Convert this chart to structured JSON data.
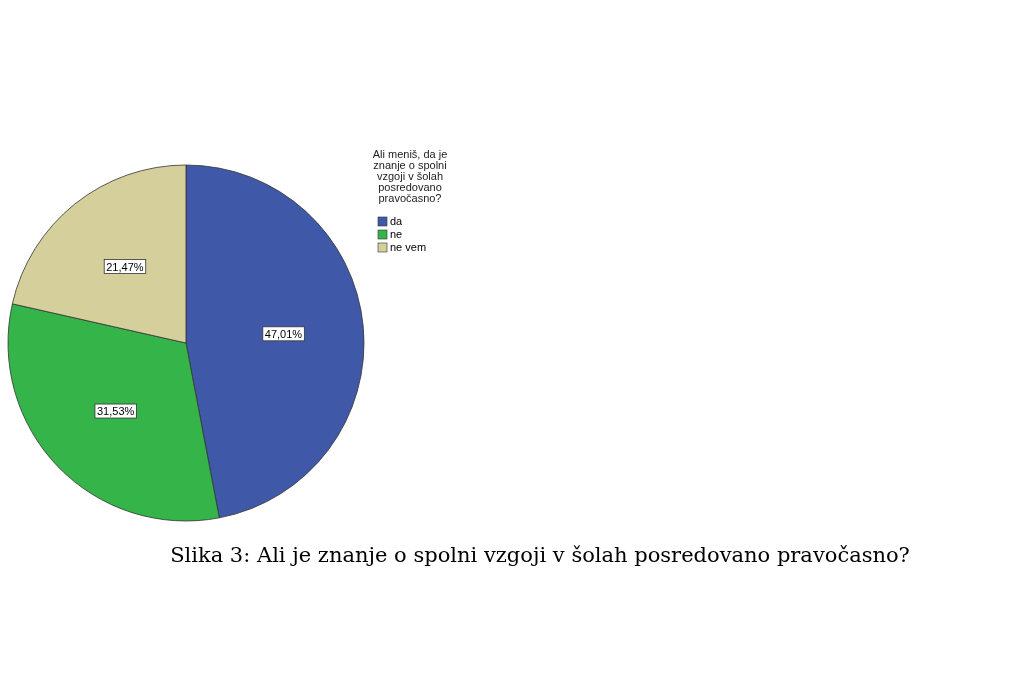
{
  "chart_data": {
    "type": "pie",
    "legend_title": "Ali meniš, da je znanje o spolni vzgoji v šolah posredovano pravočasno?",
    "categories": [
      "da",
      "ne",
      "ne vem"
    ],
    "values": [
      47.01,
      31.53,
      21.47
    ],
    "value_labels": [
      "47,01%",
      "31,53%",
      "21,47%"
    ],
    "colors": [
      "#3f59a8",
      "#35b44a",
      "#d5cf9c"
    ],
    "legend": "top right",
    "annotations": [
      "Slika 3: Ali je znanje o spolni vzgoji v šolah posredovano pravočasno?"
    ]
  }
}
